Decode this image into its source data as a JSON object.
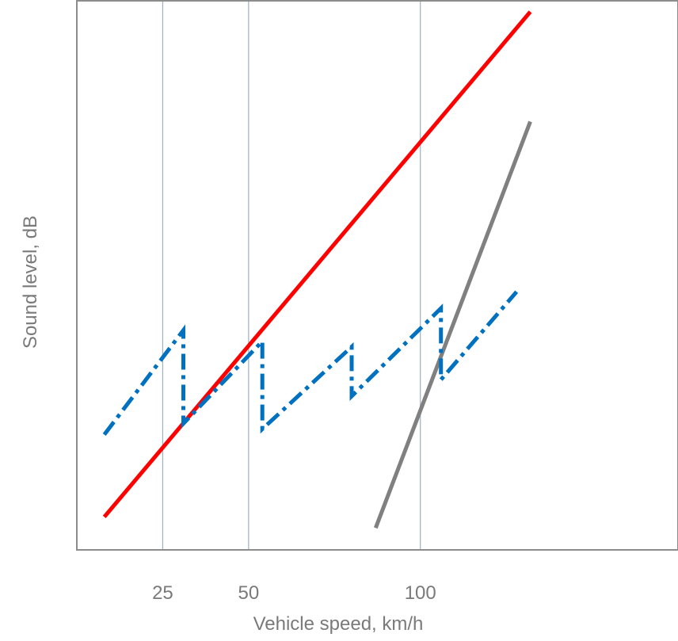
{
  "chart_data": {
    "type": "line",
    "title": "",
    "xlabel": "Vehicle speed, km/h",
    "ylabel": "Sound level, dB",
    "xlim": [
      0,
      175
    ],
    "ylim": [
      0,
      100
    ],
    "x_scale": "linear",
    "grid": {
      "vertical_at_ticks": true,
      "horizontal": false
    },
    "legend": "none",
    "xticks": [
      25,
      50,
      100
    ],
    "yticks": [],
    "series": [
      {
        "color": "#ff0000",
        "style": "solid",
        "x": [
          8,
          132
        ],
        "y": [
          6,
          98
        ]
      },
      {
        "color": "#808080",
        "style": "solid",
        "x": [
          87,
          132
        ],
        "y": [
          4,
          78
        ]
      },
      {
        "color": "#0070c0",
        "style": "dashdot",
        "x": [
          8,
          31,
          31,
          54,
          54,
          80,
          80,
          106,
          106,
          128
        ],
        "y": [
          21,
          40,
          23,
          38,
          22,
          37,
          28,
          44,
          31,
          47
        ]
      }
    ]
  }
}
